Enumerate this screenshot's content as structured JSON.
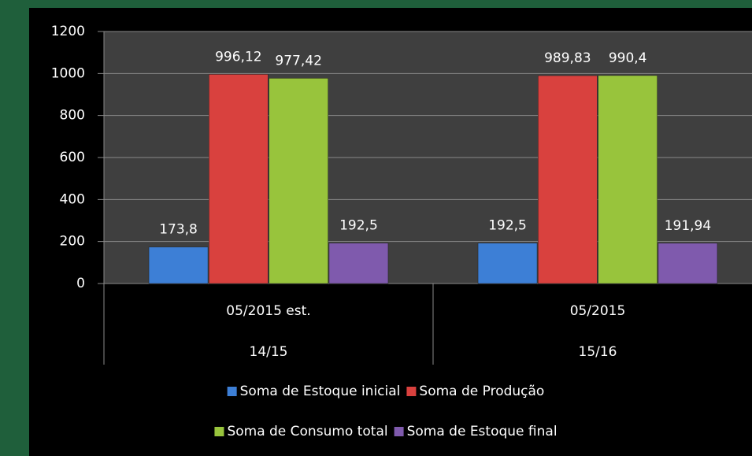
{
  "chart_data": {
    "type": "bar",
    "categories": [
      "05/2015 est.",
      "05/2015"
    ],
    "category_groups": [
      "14/15",
      "15/16"
    ],
    "series": [
      {
        "name": "Soma de Estoque inicial",
        "color": "#3d7fd6",
        "values": [
          173.8,
          192.5
        ],
        "value_labels": [
          "173,8",
          "192,5"
        ]
      },
      {
        "name": "Soma de Produção",
        "color": "#d9413e",
        "values": [
          996.12,
          989.83
        ],
        "value_labels": [
          "996,12",
          "989,83"
        ]
      },
      {
        "name": "Soma de Consumo total",
        "color": "#98c43c",
        "values": [
          977.42,
          990.4
        ],
        "value_labels": [
          "977,42",
          "990,4"
        ]
      },
      {
        "name": "Soma de Estoque final",
        "color": "#7f5aad",
        "values": [
          192.5,
          191.94
        ],
        "value_labels": [
          "192,5",
          "191,94"
        ]
      }
    ],
    "ylim": [
      0,
      1200
    ],
    "yticks": [
      0,
      200,
      400,
      600,
      800,
      1000,
      1200
    ],
    "grid": true,
    "legend": "bottom"
  }
}
